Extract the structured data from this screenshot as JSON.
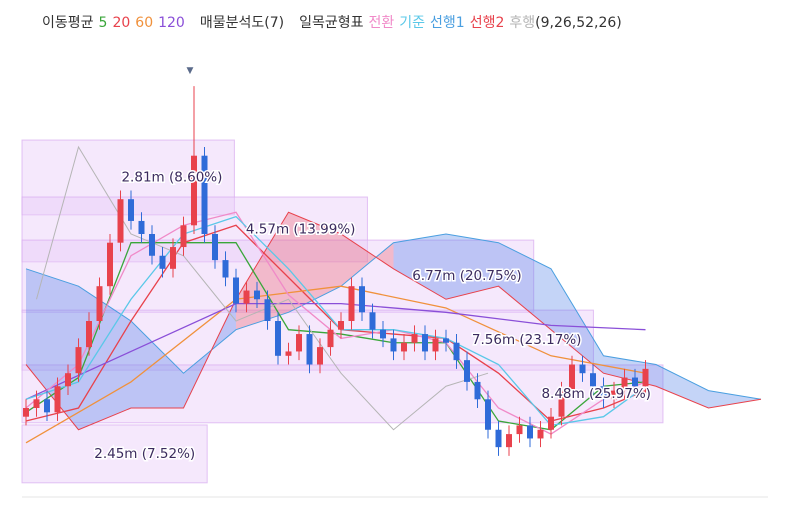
{
  "chart_data": {
    "type": "candlestick",
    "legend": {
      "ma_title": "이동평균",
      "profile_title": "매물분석도(7)",
      "ichimoku_title": "일목균형표",
      "ichimoku_params": "(9,26,52,26)"
    },
    "ylim": [
      0,
      100
    ],
    "up_color": "#e8424c",
    "down_color": "#2f6bd8",
    "open": [
      18,
      20,
      22,
      19,
      25,
      28,
      34,
      40,
      48,
      58,
      68,
      63,
      60,
      55,
      52,
      57,
      62,
      78,
      60,
      54,
      50,
      44,
      47,
      45,
      40,
      32,
      33,
      37,
      30,
      34,
      38,
      40,
      48,
      42,
      38,
      36,
      33,
      35,
      37,
      33,
      36,
      35,
      31,
      26,
      22,
      15,
      11,
      14,
      16,
      13,
      15,
      18,
      24,
      30,
      28,
      25,
      22,
      24,
      27,
      25
    ],
    "high": [
      22,
      24,
      24,
      27,
      30,
      36,
      42,
      50,
      60,
      70,
      70,
      65,
      62,
      57,
      59,
      64,
      94,
      80,
      62,
      56,
      52,
      49,
      49,
      47,
      42,
      35,
      39,
      39,
      36,
      40,
      42,
      50,
      50,
      44,
      40,
      38,
      37,
      39,
      39,
      38,
      38,
      37,
      33,
      28,
      24,
      17,
      16,
      18,
      18,
      17,
      20,
      26,
      32,
      32,
      30,
      27,
      26,
      29,
      29,
      31
    ],
    "low": [
      16,
      18,
      17,
      17,
      23,
      26,
      32,
      38,
      46,
      56,
      61,
      58,
      53,
      50,
      50,
      55,
      60,
      58,
      52,
      48,
      42,
      42,
      43,
      38,
      30,
      30,
      31,
      28,
      28,
      32,
      36,
      38,
      40,
      36,
      34,
      31,
      31,
      33,
      31,
      31,
      33,
      29,
      24,
      20,
      13,
      9,
      9,
      12,
      11,
      11,
      13,
      16,
      22,
      26,
      23,
      20,
      20,
      22,
      23,
      23
    ],
    "close": [
      20,
      22,
      19,
      25,
      28,
      34,
      40,
      48,
      58,
      68,
      63,
      60,
      55,
      52,
      57,
      62,
      78,
      60,
      54,
      50,
      44,
      47,
      45,
      40,
      32,
      33,
      37,
      30,
      34,
      38,
      40,
      48,
      42,
      38,
      36,
      33,
      35,
      37,
      33,
      36,
      35,
      31,
      26,
      22,
      15,
      11,
      14,
      16,
      13,
      15,
      18,
      24,
      30,
      28,
      25,
      22,
      24,
      27,
      25,
      29
    ],
    "series": [
      {
        "name": "5",
        "color": "#3aa63a",
        "x": [
          0,
          5,
          10,
          15,
          20,
          25,
          30,
          35,
          40,
          45,
          50,
          55,
          59
        ],
        "values": [
          19,
          27,
          58,
          58,
          58,
          38,
          37,
          35,
          35,
          17,
          15,
          25,
          26
        ]
      },
      {
        "name": "20",
        "color": "#e8424c",
        "x": [
          0,
          5,
          10,
          15,
          20,
          25,
          30,
          35,
          40,
          45,
          50,
          55,
          59
        ],
        "values": [
          17,
          20,
          40,
          58,
          62,
          50,
          38,
          37,
          36,
          28,
          17,
          20,
          24
        ]
      },
      {
        "name": "60",
        "color": "#f0913c",
        "x": [
          0,
          10,
          20,
          30,
          40,
          50,
          59
        ],
        "values": [
          12,
          26,
          45,
          48,
          43,
          32,
          28
        ]
      },
      {
        "name": "120",
        "color": "#8a4fd8",
        "x": [
          0,
          10,
          20,
          30,
          40,
          50,
          59
        ],
        "values": [
          22,
          33,
          44,
          44,
          42,
          39,
          38
        ]
      },
      {
        "name": "전환",
        "color": "#f08ac8",
        "x": [
          0,
          5,
          10,
          15,
          20,
          25,
          30,
          35,
          40,
          45,
          50,
          55,
          59
        ],
        "values": [
          20,
          30,
          55,
          62,
          65,
          46,
          36,
          38,
          35,
          20,
          14,
          22,
          26
        ]
      },
      {
        "name": "기준",
        "color": "#5ac8e8",
        "x": [
          0,
          5,
          10,
          15,
          20,
          25,
          30,
          35,
          40,
          45,
          50,
          55,
          59
        ],
        "values": [
          22,
          26,
          45,
          60,
          64,
          52,
          38,
          38,
          36,
          30,
          16,
          18,
          25
        ]
      },
      {
        "name": "후행",
        "color": "#b5b5b5",
        "x": [
          1,
          5,
          10,
          15,
          20,
          25,
          30,
          35,
          40,
          44
        ],
        "values": [
          45,
          80,
          60,
          55,
          40,
          45,
          28,
          15,
          25,
          28
        ]
      }
    ],
    "cloud": {
      "up_fill": "rgba(232,66,76,0.28)",
      "down_fill": "rgba(70,120,230,0.32)",
      "x": [
        0,
        5,
        10,
        15,
        20,
        25,
        30,
        35,
        40,
        45,
        50,
        55,
        60,
        65,
        70
      ],
      "series": [
        {
          "name": "선행1",
          "color": "#4a9fe0",
          "values": [
            52,
            48,
            40,
            28,
            38,
            42,
            48,
            58,
            60,
            58,
            52,
            32,
            30,
            24,
            22
          ]
        },
        {
          "name": "선행2",
          "color": "#e8424c",
          "values": [
            30,
            15,
            20,
            20,
            45,
            65,
            60,
            52,
            45,
            48,
            38,
            28,
            25,
            20,
            22
          ]
        }
      ]
    },
    "volume_profile": {
      "color": "rgba(232,205,248,0.45)",
      "xlim": [
        0,
        9.83
      ],
      "values": [
        2.81,
        4.57,
        6.77,
        7.56,
        8.48,
        2.45
      ],
      "value_labels": [
        "2.81m (8.60%)",
        "4.57m (13.99%)",
        "6.77m (20.75%)",
        "7.56m (23.17%)",
        "8.48m (25.97%)",
        "2.45m (7.52%)"
      ],
      "bands": [
        [
          64.4,
          81.6
        ],
        [
          53.6,
          68.5
        ],
        [
          42,
          58.6
        ],
        [
          28.7,
          42.5
        ],
        [
          16.6,
          29.9
        ],
        [
          2.8,
          16.1
        ]
      ]
    }
  }
}
